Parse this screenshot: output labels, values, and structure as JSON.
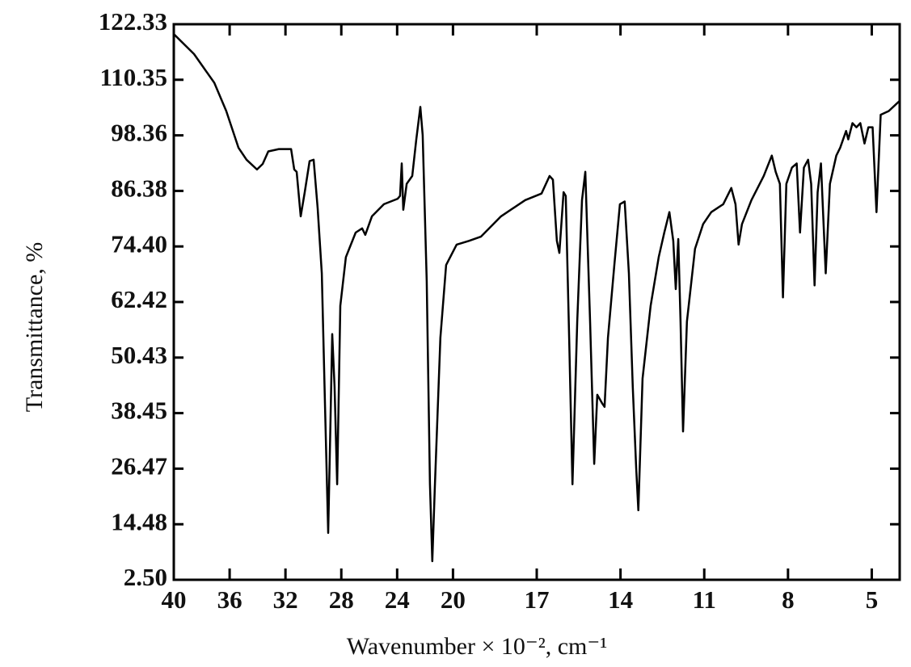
{
  "chart_data": {
    "type": "line",
    "x_label": "Wavenumber × 10⁻², cm⁻¹",
    "y_label": "Transmittance, %",
    "color": "#000000",
    "xlim": [
      40,
      4
    ],
    "xticks": [
      40,
      36,
      32,
      28,
      24,
      20,
      17,
      14,
      11,
      8,
      5
    ],
    "x_scale_break": 20,
    "x_scale_ratio": 2,
    "ylim": [
      2.5,
      122.33
    ],
    "yticks": [
      {
        "value": 2.5,
        "label": "2.50"
      },
      14.48,
      26.47,
      38.45,
      50.43,
      62.42,
      {
        "value": 74.4,
        "label": "74.40"
      },
      86.38,
      98.36,
      110.35,
      122.33
    ],
    "x": [
      40,
      38.55,
      37.1,
      36.24,
      35.37,
      34.79,
      34.04,
      33.63,
      33.23,
      32.47,
      31.6,
      31.37,
      31.2,
      30.91,
      30.62,
      30.27,
      29.98,
      29.69,
      29.4,
      29.17,
      28.94,
      28.77,
      28.65,
      28.48,
      28.3,
      28.07,
      27.67,
      26.97,
      26.51,
      26.28,
      25.81,
      24.95,
      23.96,
      23.79,
      23.67,
      23.56,
      23.32,
      22.92,
      22.63,
      22.34,
      22.17,
      21.88,
      21.65,
      21.48,
      21.3,
      20.9,
      20.49,
      19.87,
      19.43,
      19.0,
      18.28,
      17.41,
      16.83,
      16.54,
      16.42,
      16.28,
      16.19,
      16.04,
      15.96,
      15.84,
      15.72,
      15.55,
      15.38,
      15.26,
      15.09,
      14.94,
      14.83,
      14.66,
      14.57,
      14.45,
      14.22,
      14.02,
      13.85,
      13.7,
      13.56,
      13.44,
      13.36,
      13.21,
      12.92,
      12.63,
      12.43,
      12.25,
      12.11,
      12.02,
      11.93,
      11.85,
      11.76,
      11.62,
      11.33,
      11.04,
      10.75,
      10.32,
      10.03,
      9.88,
      9.77,
      9.65,
      9.31,
      8.87,
      8.58,
      8.44,
      8.29,
      8.18,
      8.06,
      7.86,
      7.69,
      7.57,
      7.43,
      7.28,
      7.17,
      7.05,
      6.94,
      6.82,
      6.65,
      6.5,
      6.27,
      6.13,
      5.92,
      5.84,
      5.69,
      5.55,
      5.41,
      5.26,
      5.12,
      4.97,
      4.83,
      4.68,
      4.39,
      4.02
    ],
    "values": [
      120.2,
      115.9,
      109.7,
      103.6,
      95.7,
      93.1,
      91.0,
      92.2,
      94.9,
      95.4,
      95.4,
      91.0,
      90.5,
      80.9,
      86.1,
      92.8,
      93.1,
      82.6,
      68.6,
      40.6,
      12.6,
      37.1,
      55.5,
      44.1,
      23.1,
      61.6,
      72.1,
      77.4,
      78.3,
      76.9,
      80.9,
      83.5,
      84.7,
      85.3,
      92.3,
      82.3,
      87.9,
      89.6,
      97.5,
      104.5,
      98.4,
      66.9,
      23.1,
      6.5,
      22.3,
      54.7,
      70.4,
      74.8,
      75.6,
      76.5,
      80.9,
      84.4,
      85.8,
      89.6,
      88.8,
      75.6,
      73.0,
      86.1,
      85.3,
      54.7,
      23.1,
      58.2,
      84.4,
      90.5,
      58.2,
      27.5,
      42.4,
      40.6,
      39.8,
      54.7,
      70.4,
      83.5,
      84.1,
      68.6,
      44.1,
      26.7,
      17.5,
      45.9,
      61.6,
      72.1,
      77.4,
      81.8,
      75.6,
      65.2,
      76.0,
      58.2,
      34.5,
      58.2,
      73.9,
      79.2,
      81.8,
      83.5,
      87.0,
      83.5,
      74.8,
      79.2,
      84.4,
      89.6,
      94.0,
      90.5,
      87.9,
      63.4,
      87.9,
      91.4,
      92.3,
      77.4,
      91.4,
      93.1,
      87.9,
      66.0,
      86.1,
      92.3,
      68.6,
      87.9,
      94.0,
      95.7,
      99.3,
      97.5,
      101.0,
      100.1,
      101.0,
      96.6,
      100.1,
      100.1,
      81.8,
      102.8,
      103.6,
      105.7
    ]
  }
}
